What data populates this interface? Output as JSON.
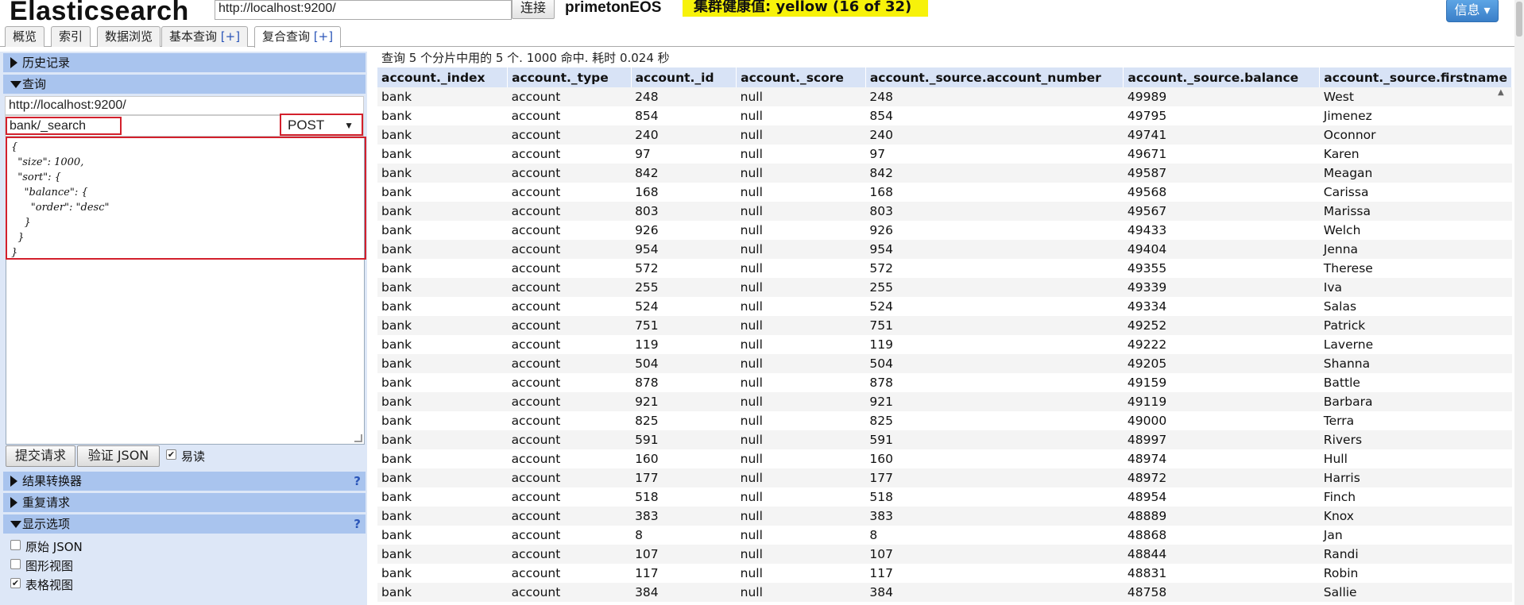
{
  "header": {
    "app_title": "Elasticsearch",
    "url": "http://localhost:9200/",
    "connect_label": "连接",
    "cluster_name": "primetonEOS",
    "health_text": "集群健康值: yellow (16 of 32)",
    "info_label": "信息 ▾"
  },
  "tabs": [
    {
      "label": "概览"
    },
    {
      "label": "索引"
    },
    {
      "label": "数据浏览"
    },
    {
      "label": "基本查询",
      "plus": "[+]"
    },
    {
      "label": "复合查询",
      "plus": "[+]"
    }
  ],
  "left": {
    "history_label": "历史记录",
    "query_label": "查询",
    "full_url": "http://localhost:9200/",
    "path": "bank/_search",
    "method": "POST",
    "body_lines": [
      "{",
      "  \"size\": 1000,",
      "  \"sort\": {",
      "    \"balance\": {",
      "      \"order\": \"desc\"",
      "    }",
      "  }",
      "}"
    ],
    "submit_label": "提交请求",
    "validate_label": "验证 JSON",
    "pretty_label": "易读",
    "transformer_label": "结果转换器",
    "repeat_label": "重复请求",
    "display_label": "显示选项",
    "help_q": "?",
    "opt_raw": "原始 JSON",
    "opt_graph": "图形视图",
    "opt_table": "表格视图"
  },
  "results": {
    "summary": "查询 5 个分片中用的 5 个. 1000 命中. 耗时 0.024 秒",
    "columns": [
      "account._index",
      "account._type",
      "account._id",
      "account._score",
      "account._source.account_number",
      "account._source.balance",
      "account._source.firstname"
    ],
    "rows": [
      [
        "bank",
        "account",
        "248",
        "null",
        "248",
        "49989",
        "West"
      ],
      [
        "bank",
        "account",
        "854",
        "null",
        "854",
        "49795",
        "Jimenez"
      ],
      [
        "bank",
        "account",
        "240",
        "null",
        "240",
        "49741",
        "Oconnor"
      ],
      [
        "bank",
        "account",
        "97",
        "null",
        "97",
        "49671",
        "Karen"
      ],
      [
        "bank",
        "account",
        "842",
        "null",
        "842",
        "49587",
        "Meagan"
      ],
      [
        "bank",
        "account",
        "168",
        "null",
        "168",
        "49568",
        "Carissa"
      ],
      [
        "bank",
        "account",
        "803",
        "null",
        "803",
        "49567",
        "Marissa"
      ],
      [
        "bank",
        "account",
        "926",
        "null",
        "926",
        "49433",
        "Welch"
      ],
      [
        "bank",
        "account",
        "954",
        "null",
        "954",
        "49404",
        "Jenna"
      ],
      [
        "bank",
        "account",
        "572",
        "null",
        "572",
        "49355",
        "Therese"
      ],
      [
        "bank",
        "account",
        "255",
        "null",
        "255",
        "49339",
        "Iva"
      ],
      [
        "bank",
        "account",
        "524",
        "null",
        "524",
        "49334",
        "Salas"
      ],
      [
        "bank",
        "account",
        "751",
        "null",
        "751",
        "49252",
        "Patrick"
      ],
      [
        "bank",
        "account",
        "119",
        "null",
        "119",
        "49222",
        "Laverne"
      ],
      [
        "bank",
        "account",
        "504",
        "null",
        "504",
        "49205",
        "Shanna"
      ],
      [
        "bank",
        "account",
        "878",
        "null",
        "878",
        "49159",
        "Battle"
      ],
      [
        "bank",
        "account",
        "921",
        "null",
        "921",
        "49119",
        "Barbara"
      ],
      [
        "bank",
        "account",
        "825",
        "null",
        "825",
        "49000",
        "Terra"
      ],
      [
        "bank",
        "account",
        "591",
        "null",
        "591",
        "48997",
        "Rivers"
      ],
      [
        "bank",
        "account",
        "160",
        "null",
        "160",
        "48974",
        "Hull"
      ],
      [
        "bank",
        "account",
        "177",
        "null",
        "177",
        "48972",
        "Harris"
      ],
      [
        "bank",
        "account",
        "518",
        "null",
        "518",
        "48954",
        "Finch"
      ],
      [
        "bank",
        "account",
        "383",
        "null",
        "383",
        "48889",
        "Knox"
      ],
      [
        "bank",
        "account",
        "8",
        "null",
        "8",
        "48868",
        "Jan"
      ],
      [
        "bank",
        "account",
        "107",
        "null",
        "107",
        "48844",
        "Randi"
      ],
      [
        "bank",
        "account",
        "117",
        "null",
        "117",
        "48831",
        "Robin"
      ],
      [
        "bank",
        "account",
        "384",
        "null",
        "384",
        "48758",
        "Sallie"
      ]
    ]
  },
  "colors": {
    "accent_blue": "#3a7fc8",
    "health_yellow": "#f7f20a",
    "highlight_red": "#d3202c",
    "section_head": "#a9c4ee"
  }
}
